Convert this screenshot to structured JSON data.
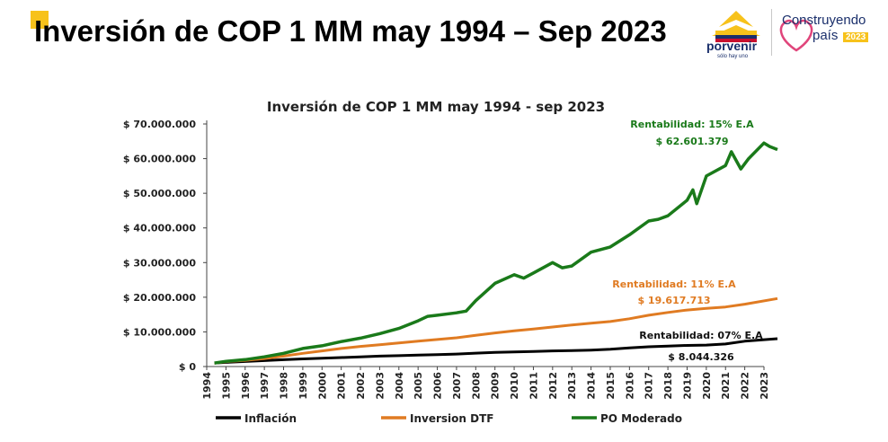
{
  "slide": {
    "title": "Inversión de COP 1 MM may 1994 – Sep 2023",
    "brand": "porvenir",
    "brand_tagline": "sólo hay uno",
    "campaign_line1": "Construyendo",
    "campaign_line2": "país",
    "campaign_year": "2023"
  },
  "colors": {
    "inflacion": "#000000",
    "dtf": "#e07b22",
    "po": "#1a7a1a",
    "accent": "#f7c21b"
  },
  "chart_data": {
    "type": "line",
    "title": "Inversión de COP 1 MM may 1994 - sep 2023",
    "xlabel": "",
    "ylabel": "",
    "ylim": [
      0,
      70000000
    ],
    "xlim": [
      1994,
      2023
    ],
    "y_ticks": [
      0,
      10000000,
      20000000,
      30000000,
      40000000,
      50000000,
      60000000,
      70000000
    ],
    "y_tick_labels": [
      "$ 0",
      "$ 10.000.000",
      "$ 20.000.000",
      "$ 30.000.000",
      "$ 40.000.000",
      "$ 50.000.000",
      "$ 60.000.000",
      "$ 70.000.000"
    ],
    "x_tick_labels": [
      "1994",
      "1995",
      "1996",
      "1997",
      "1998",
      "1999",
      "2000",
      "2001",
      "2002",
      "2003",
      "2004",
      "2005",
      "2006",
      "2007",
      "2008",
      "2009",
      "2010",
      "2011",
      "2012",
      "2013",
      "2014",
      "2015",
      "2016",
      "2017",
      "2018",
      "2019",
      "2020",
      "2021",
      "2022",
      "2023"
    ],
    "legend_position": "bottom",
    "series": [
      {
        "key": "inflacion",
        "name": "Inflación",
        "x": [
          1994.4,
          1995,
          1996,
          1997,
          1998,
          1999,
          2000,
          2001,
          2002,
          2003,
          2004,
          2005,
          2006,
          2007,
          2008,
          2009,
          2010,
          2011,
          2012,
          2013,
          2014,
          2015,
          2016,
          2017,
          2018,
          2019,
          2020,
          2021,
          2022,
          2023.7
        ],
        "y": [
          1000000,
          1200000,
          1450000,
          1700000,
          1980000,
          2200000,
          2400000,
          2600000,
          2800000,
          3000000,
          3150000,
          3300000,
          3450000,
          3600000,
          3850000,
          4100000,
          4200000,
          4350000,
          4500000,
          4600000,
          4750000,
          5000000,
          5400000,
          5700000,
          5900000,
          6100000,
          6200000,
          6500000,
          7300000,
          8044326
        ]
      },
      {
        "key": "dtf",
        "name": "Inversion DTF",
        "x": [
          1994.4,
          1995,
          1996,
          1997,
          1998,
          1999,
          2000,
          2001,
          2002,
          2003,
          2004,
          2005,
          2006,
          2007,
          2008,
          2009,
          2010,
          2011,
          2012,
          2013,
          2014,
          2015,
          2016,
          2017,
          2018,
          2019,
          2020,
          2021,
          2022,
          2023.7
        ],
        "y": [
          1000000,
          1400000,
          1800000,
          2300000,
          3000000,
          3800000,
          4500000,
          5200000,
          5800000,
          6300000,
          6800000,
          7300000,
          7800000,
          8300000,
          9000000,
          9700000,
          10300000,
          10800000,
          11400000,
          12000000,
          12500000,
          13000000,
          13800000,
          14800000,
          15600000,
          16300000,
          16800000,
          17200000,
          18000000,
          19617713
        ]
      },
      {
        "key": "po",
        "name": "PO Moderado",
        "x": [
          1994.4,
          1995,
          1996,
          1997,
          1998,
          1999,
          2000,
          2001,
          2002,
          2003,
          2004,
          2005,
          2005.5,
          2006,
          2007,
          2007.5,
          2008,
          2009,
          2010,
          2010.5,
          2011,
          2012,
          2012.5,
          2013,
          2014,
          2015,
          2016,
          2017,
          2017.5,
          2018,
          2019,
          2019.3,
          2019.5,
          2020,
          2021,
          2021.3,
          2021.8,
          2022.2,
          2023,
          2023.3,
          2023.7
        ],
        "y": [
          1000000,
          1500000,
          2000000,
          2800000,
          3800000,
          5200000,
          6000000,
          7200000,
          8200000,
          9500000,
          11000000,
          13200000,
          14500000,
          14800000,
          15500000,
          16000000,
          19000000,
          24000000,
          26500000,
          25500000,
          27000000,
          30000000,
          28500000,
          29000000,
          33000000,
          34500000,
          38000000,
          42000000,
          42500000,
          43500000,
          48000000,
          51000000,
          47000000,
          55000000,
          58000000,
          62000000,
          57000000,
          60000000,
          64500000,
          63500000,
          62601379
        ]
      }
    ],
    "annotations": [
      {
        "series": "po",
        "line1": "Rentabilidad: 15% E.A",
        "line2": "$ 62.601.379"
      },
      {
        "series": "dtf",
        "line1": "Rentabilidad: 11% E.A",
        "line2": "$ 19.617.713"
      },
      {
        "series": "inflacion",
        "line1": "Rentabilidad: 07% E.A",
        "line2": "$ 8.044.326"
      }
    ]
  }
}
